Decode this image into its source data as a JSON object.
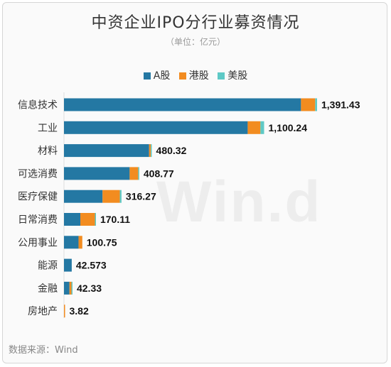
{
  "title": "中资企业IPO分行业募资情况",
  "unit": "（单位：亿元）",
  "source": "数据来源：Wind",
  "watermark": "Win.d",
  "colors": {
    "a_share": "#2478a3",
    "hk_share": "#f28c20",
    "us_share": "#5ec9c6"
  },
  "chart_data": {
    "type": "bar",
    "orientation": "horizontal",
    "stacked": true,
    "categories": [
      "信息技术",
      "工业",
      "材料",
      "可选消费",
      "医疗保健",
      "日常消费",
      "公用事业",
      "能源",
      "金融",
      "房地产"
    ],
    "series": [
      {
        "name": "A股",
        "color": "#2478a3",
        "values": [
          1303,
          1010,
          468,
          361,
          212,
          90,
          80,
          42.573,
          30,
          0
        ]
      },
      {
        "name": "港股",
        "color": "#f28c20",
        "values": [
          78,
          70,
          9,
          47,
          95,
          80,
          20.75,
          0,
          11,
          3.82
        ]
      },
      {
        "name": "美股",
        "color": "#5ec9c6",
        "values": [
          10.43,
          20.24,
          3.32,
          0.77,
          9.27,
          0.11,
          0,
          0,
          1.33,
          0
        ]
      }
    ],
    "totals": [
      "1,391.43",
      "1,100.24",
      "480.32",
      "408.77",
      "316.27",
      "170.11",
      "100.75",
      "42.573",
      "42.33",
      "3.82"
    ],
    "legend_position": "top",
    "xlim": [
      0,
      1391.43
    ],
    "grid": false
  }
}
